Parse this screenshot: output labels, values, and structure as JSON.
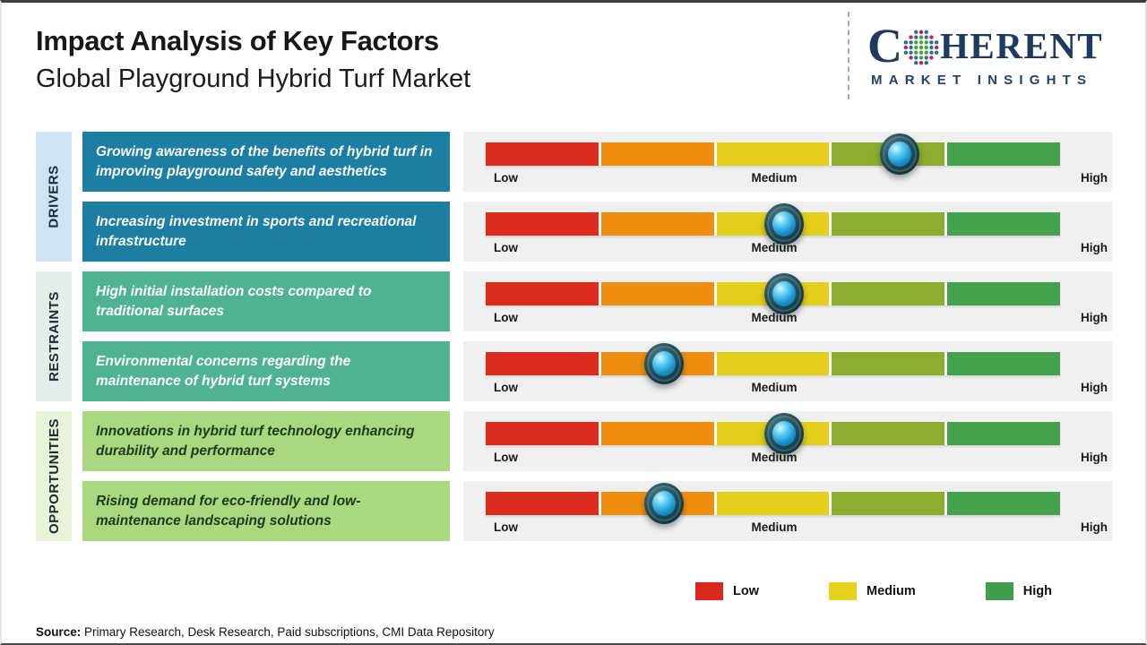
{
  "header": {
    "title": "Impact Analysis of Key Factors",
    "subtitle": "Global Playground Hybrid Turf Market"
  },
  "logo": {
    "name_start": "C",
    "name_end": "HERENT",
    "tagline": "MARKET INSIGHTS",
    "brand_navy": "#1e3a61",
    "globe_icon": "dotted-globe"
  },
  "scale_labels": {
    "low": "Low",
    "medium": "Medium",
    "high": "High"
  },
  "bar": {
    "segment_colors": [
      "#dd2c1e",
      "#ef8e0e",
      "#e4cf1b",
      "#8cad2d",
      "#44a14c"
    ]
  },
  "groups": [
    {
      "label": "DRIVERS",
      "rows": [
        {
          "text": "Growing awareness of the benefits of hybrid turf in improving playground safety and aesthetics",
          "marker_pos": "72%"
        },
        {
          "text": "Increasing investment in sports and recreational infrastructure",
          "marker_pos": "52%"
        }
      ]
    },
    {
      "label": "RESTRAINTS",
      "rows": [
        {
          "text": "High initial installation costs compared to traditional surfaces",
          "marker_pos": "52%"
        },
        {
          "text": "Environmental concerns regarding the maintenance of hybrid turf systems",
          "marker_pos": "31%"
        }
      ]
    },
    {
      "label": "OPPORTUNITIES",
      "rows": [
        {
          "text": "Innovations in hybrid turf technology enhancing durability and performance",
          "marker_pos": "52%"
        },
        {
          "text": "Rising demand for eco-friendly and low-maintenance landscaping solutions",
          "marker_pos": "31%"
        }
      ]
    }
  ],
  "legend": {
    "items": [
      {
        "label": "Low",
        "color": "#d9291d"
      },
      {
        "label": "Medium",
        "color": "#e8d31c"
      },
      {
        "label": "High",
        "color": "#3f9e4a"
      }
    ]
  },
  "source": {
    "prefix": "Source:",
    "text": " Primary Research, Desk Research, Paid subscriptions, CMI Data Repository"
  },
  "chart_data": {
    "type": "bar",
    "title": "Impact Analysis of Key Factors",
    "subtitle": "Global Playground Hybrid Turf Market",
    "axis": {
      "scale": [
        "Low",
        "Medium",
        "High"
      ],
      "range": [
        0,
        1
      ],
      "gridlines": false
    },
    "legend": {
      "entries": [
        "Low",
        "Medium",
        "High"
      ],
      "position": "bottom-right"
    },
    "series": [
      {
        "group": "Drivers",
        "factor": "Growing awareness of the benefits of hybrid turf in improving playground safety and aesthetics",
        "impact_position": 0.72,
        "impact_level": "Medium-High"
      },
      {
        "group": "Drivers",
        "factor": "Increasing investment in sports and recreational infrastructure",
        "impact_position": 0.52,
        "impact_level": "Medium"
      },
      {
        "group": "Restraints",
        "factor": "High initial installation costs compared to traditional surfaces",
        "impact_position": 0.52,
        "impact_level": "Medium"
      },
      {
        "group": "Restraints",
        "factor": "Environmental concerns regarding the maintenance of hybrid turf systems",
        "impact_position": 0.31,
        "impact_level": "Low-Medium"
      },
      {
        "group": "Opportunities",
        "factor": "Innovations in hybrid turf technology enhancing durability and performance",
        "impact_position": 0.52,
        "impact_level": "Medium"
      },
      {
        "group": "Opportunities",
        "factor": "Rising demand for eco-friendly and low-maintenance landscaping solutions",
        "impact_position": 0.31,
        "impact_level": "Low-Medium"
      }
    ]
  }
}
